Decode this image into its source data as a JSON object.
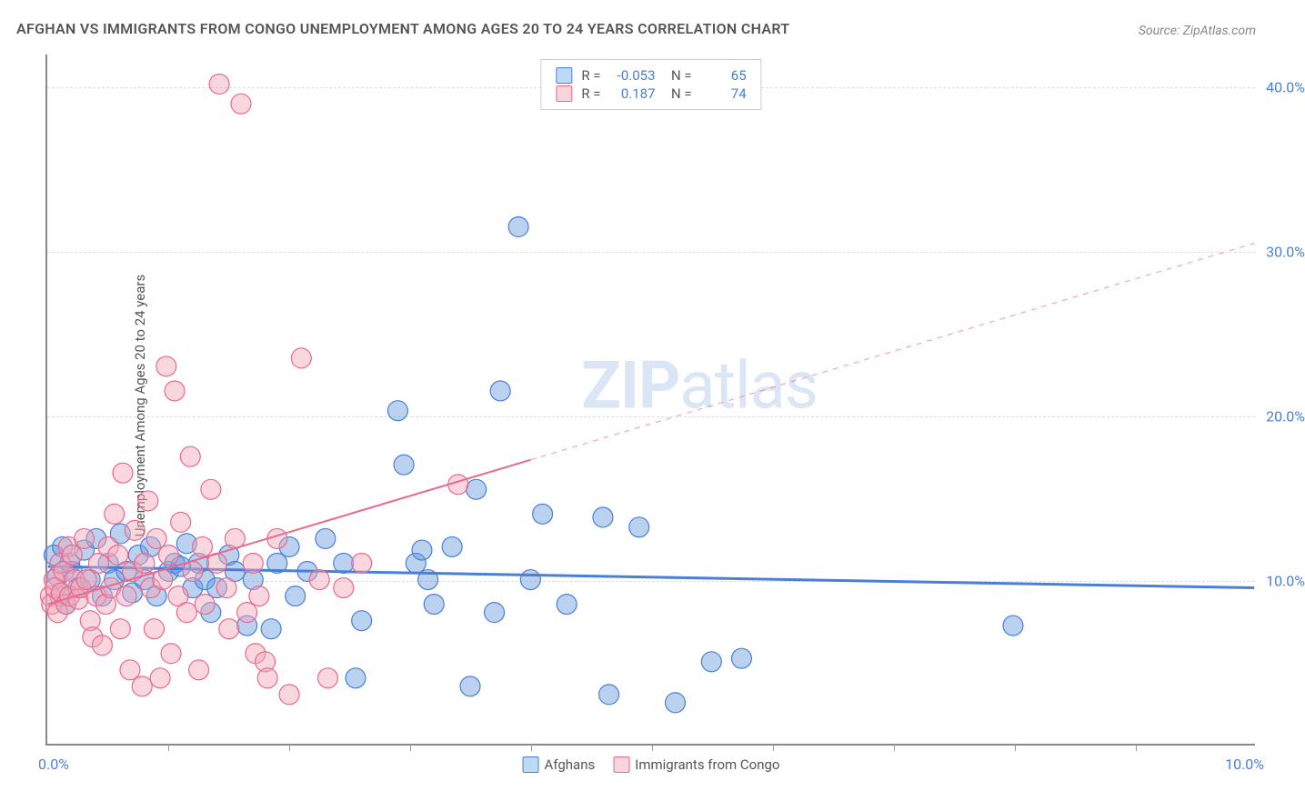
{
  "title": "AFGHAN VS IMMIGRANTS FROM CONGO UNEMPLOYMENT AMONG AGES 20 TO 24 YEARS CORRELATION CHART",
  "source": "Source: ZipAtlas.com",
  "y_axis_label": "Unemployment Among Ages 20 to 24 years",
  "watermark": {
    "bold": "ZIP",
    "rest": "atlas"
  },
  "chart": {
    "type": "scatter",
    "xlim": [
      0,
      10
    ],
    "ylim": [
      0,
      42
    ],
    "x_unit": "%",
    "y_unit": "%",
    "x_labels": {
      "min": "0.0%",
      "max": "10.0%"
    },
    "y_ticks": [
      10,
      20,
      30,
      40
    ],
    "y_tick_labels": [
      "10.0%",
      "20.0%",
      "30.0%",
      "40.0%"
    ],
    "x_tick_positions": [
      1,
      2,
      3,
      4,
      5,
      6,
      7,
      8,
      9
    ],
    "background_color": "#ffffff",
    "grid_color": "#dddddd",
    "marker_radius": 11,
    "marker_opacity": 0.45,
    "series": [
      {
        "name": "Afghans",
        "color": "#6699dd",
        "stroke": "#4a7fd8",
        "R": "-0.053",
        "N": "65",
        "trend": {
          "x1": 0,
          "y1": 10.8,
          "x2": 10,
          "y2": 9.5,
          "solid_until": 10,
          "width": 3
        },
        "points": [
          [
            0.05,
            11.5
          ],
          [
            0.08,
            10.2
          ],
          [
            0.1,
            9.0
          ],
          [
            0.12,
            12.0
          ],
          [
            0.15,
            8.5
          ],
          [
            0.18,
            11.0
          ],
          [
            0.2,
            10.5
          ],
          [
            0.25,
            9.5
          ],
          [
            0.3,
            11.8
          ],
          [
            0.35,
            10.0
          ],
          [
            0.4,
            12.5
          ],
          [
            0.45,
            9.0
          ],
          [
            0.5,
            11.0
          ],
          [
            0.55,
            10.0
          ],
          [
            0.6,
            12.8
          ],
          [
            0.65,
            10.5
          ],
          [
            0.7,
            9.2
          ],
          [
            0.75,
            11.5
          ],
          [
            0.8,
            10.0
          ],
          [
            0.85,
            12.0
          ],
          [
            0.9,
            9.0
          ],
          [
            1.0,
            10.5
          ],
          [
            1.05,
            11.0
          ],
          [
            1.1,
            10.8
          ],
          [
            1.15,
            12.2
          ],
          [
            1.2,
            9.5
          ],
          [
            1.25,
            11.0
          ],
          [
            1.3,
            10.0
          ],
          [
            1.35,
            8.0
          ],
          [
            1.4,
            9.5
          ],
          [
            1.5,
            11.5
          ],
          [
            1.55,
            10.5
          ],
          [
            1.65,
            7.2
          ],
          [
            1.7,
            10.0
          ],
          [
            1.85,
            7.0
          ],
          [
            1.9,
            11.0
          ],
          [
            2.0,
            12.0
          ],
          [
            2.05,
            9.0
          ],
          [
            2.15,
            10.5
          ],
          [
            2.3,
            12.5
          ],
          [
            2.45,
            11.0
          ],
          [
            2.55,
            4.0
          ],
          [
            2.6,
            7.5
          ],
          [
            2.9,
            20.3
          ],
          [
            2.95,
            17.0
          ],
          [
            3.05,
            11.0
          ],
          [
            3.1,
            11.8
          ],
          [
            3.15,
            10.0
          ],
          [
            3.2,
            8.5
          ],
          [
            3.35,
            12.0
          ],
          [
            3.5,
            3.5
          ],
          [
            3.55,
            15.5
          ],
          [
            3.7,
            8.0
          ],
          [
            3.75,
            21.5
          ],
          [
            3.9,
            31.5
          ],
          [
            4.0,
            10.0
          ],
          [
            4.1,
            14.0
          ],
          [
            4.3,
            8.5
          ],
          [
            4.6,
            13.8
          ],
          [
            4.65,
            3.0
          ],
          [
            4.9,
            13.2
          ],
          [
            5.2,
            2.5
          ],
          [
            5.5,
            5.0
          ],
          [
            5.75,
            5.2
          ],
          [
            8.0,
            7.2
          ]
        ]
      },
      {
        "name": "Immigrants from Congo",
        "color": "#f4a6b8",
        "stroke": "#e86a8c",
        "R": "0.187",
        "N": "74",
        "trend": {
          "x1": 0,
          "y1": 8.5,
          "x2": 10,
          "y2": 30.5,
          "solid_until": 4.0,
          "width": 2
        },
        "points": [
          [
            0.02,
            9.0
          ],
          [
            0.03,
            8.5
          ],
          [
            0.05,
            10.0
          ],
          [
            0.06,
            9.5
          ],
          [
            0.08,
            8.0
          ],
          [
            0.1,
            11.0
          ],
          [
            0.11,
            9.2
          ],
          [
            0.13,
            10.5
          ],
          [
            0.15,
            8.5
          ],
          [
            0.17,
            12.0
          ],
          [
            0.18,
            9.0
          ],
          [
            0.2,
            11.5
          ],
          [
            0.22,
            10.0
          ],
          [
            0.25,
            8.8
          ],
          [
            0.27,
            9.5
          ],
          [
            0.3,
            12.5
          ],
          [
            0.32,
            10.0
          ],
          [
            0.35,
            7.5
          ],
          [
            0.37,
            6.5
          ],
          [
            0.4,
            9.0
          ],
          [
            0.42,
            11.0
          ],
          [
            0.45,
            6.0
          ],
          [
            0.48,
            8.5
          ],
          [
            0.5,
            12.0
          ],
          [
            0.52,
            9.5
          ],
          [
            0.55,
            14.0
          ],
          [
            0.58,
            11.5
          ],
          [
            0.6,
            7.0
          ],
          [
            0.62,
            16.5
          ],
          [
            0.65,
            9.0
          ],
          [
            0.68,
            4.5
          ],
          [
            0.7,
            10.5
          ],
          [
            0.72,
            13.0
          ],
          [
            0.78,
            3.5
          ],
          [
            0.8,
            11.0
          ],
          [
            0.83,
            14.8
          ],
          [
            0.85,
            9.5
          ],
          [
            0.88,
            7.0
          ],
          [
            0.9,
            12.5
          ],
          [
            0.93,
            4.0
          ],
          [
            0.95,
            10.0
          ],
          [
            0.98,
            23.0
          ],
          [
            1.0,
            11.5
          ],
          [
            1.02,
            5.5
          ],
          [
            1.05,
            21.5
          ],
          [
            1.08,
            9.0
          ],
          [
            1.1,
            13.5
          ],
          [
            1.15,
            8.0
          ],
          [
            1.18,
            17.5
          ],
          [
            1.2,
            10.5
          ],
          [
            1.25,
            4.5
          ],
          [
            1.28,
            12.0
          ],
          [
            1.3,
            8.5
          ],
          [
            1.35,
            15.5
          ],
          [
            1.4,
            11.0
          ],
          [
            1.42,
            40.2
          ],
          [
            1.48,
            9.5
          ],
          [
            1.5,
            7.0
          ],
          [
            1.55,
            12.5
          ],
          [
            1.6,
            39.0
          ],
          [
            1.65,
            8.0
          ],
          [
            1.7,
            11.0
          ],
          [
            1.72,
            5.5
          ],
          [
            1.75,
            9.0
          ],
          [
            1.8,
            5.0
          ],
          [
            1.82,
            4.0
          ],
          [
            1.9,
            12.5
          ],
          [
            2.0,
            3.0
          ],
          [
            2.1,
            23.5
          ],
          [
            2.25,
            10.0
          ],
          [
            2.32,
            4.0
          ],
          [
            2.45,
            9.5
          ],
          [
            2.6,
            11.0
          ],
          [
            3.4,
            15.8
          ]
        ]
      }
    ]
  }
}
